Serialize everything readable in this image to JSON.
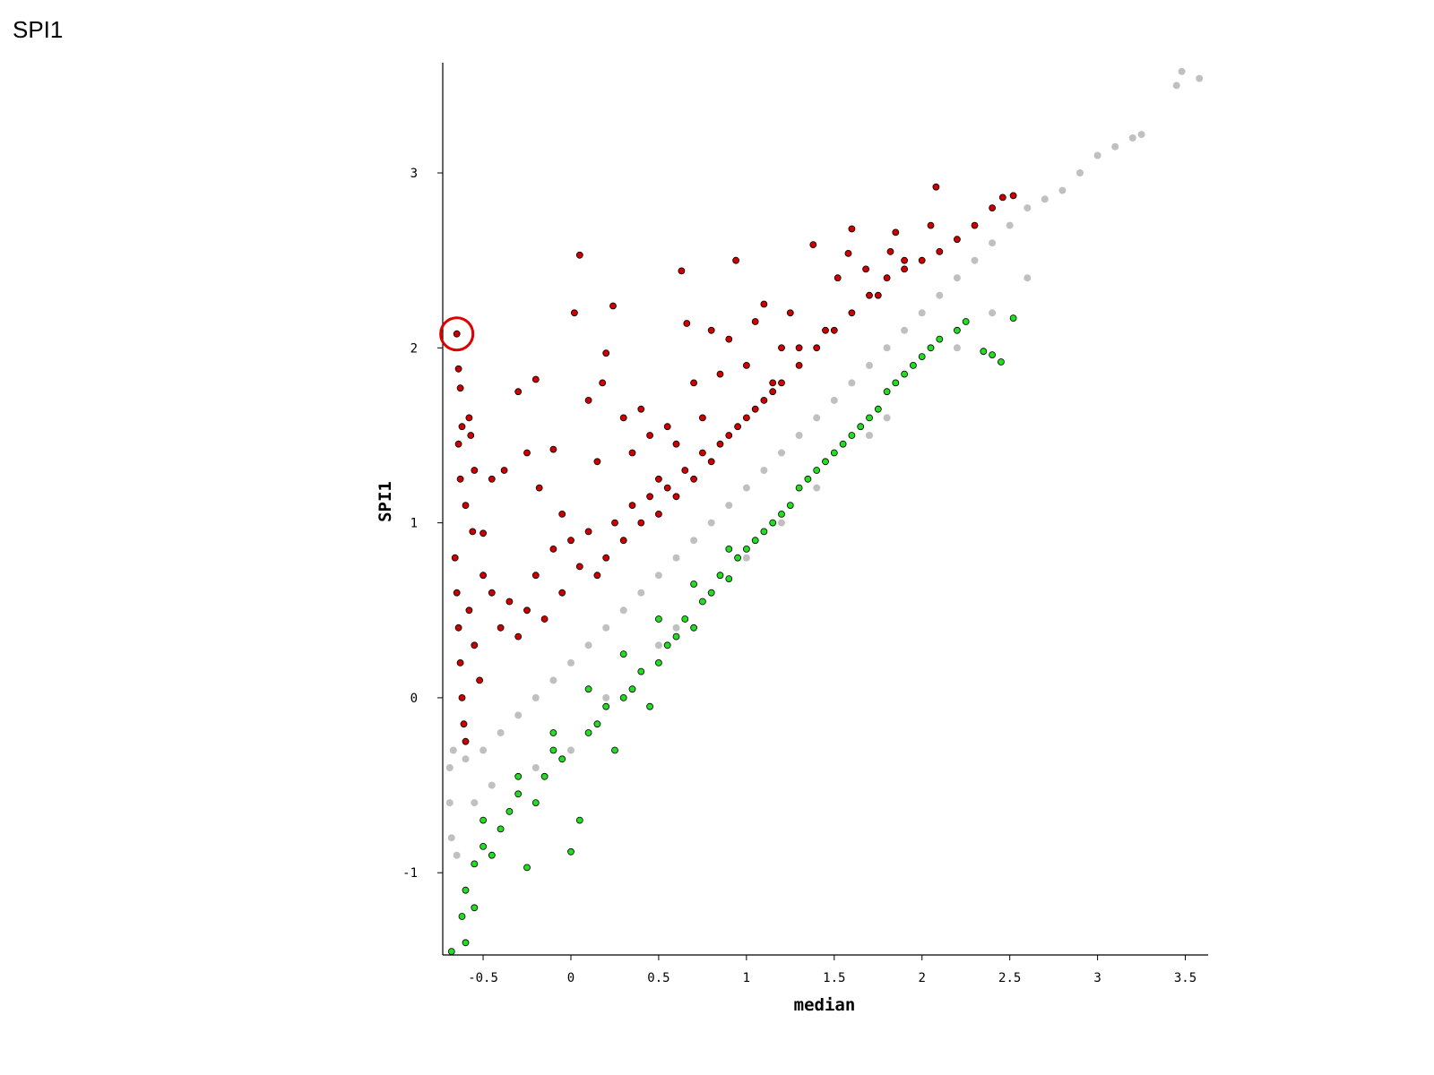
{
  "title": "SPI1",
  "colors": {
    "background": "#c0c0c0",
    "up": "#cc0000",
    "down": "#22dd22",
    "outline": "#000000",
    "highlight_ring": "#dd0000"
  },
  "chart_data": {
    "type": "scatter",
    "title": "",
    "xlabel": "median",
    "ylabel": "SPI1",
    "xlim": [
      -0.73,
      3.63
    ],
    "ylim": [
      -1.47,
      3.63
    ],
    "xticks": [
      "-0.5",
      "0",
      "0.5",
      "1",
      "1.5",
      "2",
      "2.5",
      "3",
      "3.5"
    ],
    "yticks": [
      "-1",
      "0",
      "1",
      "2",
      "3"
    ],
    "grid": false,
    "legend": "none",
    "highlight": {
      "x": -0.65,
      "y": 2.08
    },
    "series": [
      {
        "role": "background",
        "color": "#c0c0c0",
        "points": [
          [
            -0.69,
            -0.4
          ],
          [
            -0.69,
            -0.6
          ],
          [
            -0.68,
            -0.8
          ],
          [
            -0.67,
            -0.3
          ],
          [
            -0.65,
            -0.9
          ],
          [
            -0.6,
            -0.35
          ],
          [
            -0.55,
            -0.6
          ],
          [
            -0.5,
            -0.3
          ],
          [
            -0.45,
            -0.5
          ],
          [
            -0.4,
            -0.2
          ],
          [
            -0.3,
            -0.1
          ],
          [
            -0.2,
            0.0
          ],
          [
            -0.1,
            0.1
          ],
          [
            0.0,
            0.2
          ],
          [
            0.1,
            0.3
          ],
          [
            0.2,
            0.4
          ],
          [
            0.3,
            0.5
          ],
          [
            0.4,
            0.6
          ],
          [
            0.5,
            0.7
          ],
          [
            0.6,
            0.8
          ],
          [
            0.7,
            0.9
          ],
          [
            0.8,
            1.0
          ],
          [
            0.9,
            1.1
          ],
          [
            1.0,
            1.2
          ],
          [
            1.1,
            1.3
          ],
          [
            1.2,
            1.4
          ],
          [
            1.3,
            1.5
          ],
          [
            1.4,
            1.6
          ],
          [
            1.5,
            1.7
          ],
          [
            1.6,
            1.8
          ],
          [
            1.7,
            1.9
          ],
          [
            1.8,
            2.0
          ],
          [
            1.9,
            2.1
          ],
          [
            2.0,
            2.2
          ],
          [
            2.1,
            2.3
          ],
          [
            2.2,
            2.4
          ],
          [
            2.3,
            2.5
          ],
          [
            2.4,
            2.6
          ],
          [
            2.5,
            2.7
          ],
          [
            2.6,
            2.8
          ],
          [
            2.7,
            2.85
          ],
          [
            2.8,
            2.9
          ],
          [
            2.9,
            3.0
          ],
          [
            3.0,
            3.1
          ],
          [
            3.1,
            3.15
          ],
          [
            3.2,
            3.2
          ],
          [
            3.25,
            3.22
          ],
          [
            3.45,
            3.5
          ],
          [
            3.48,
            3.58
          ],
          [
            3.58,
            3.54
          ],
          [
            -0.2,
            -0.4
          ],
          [
            0.2,
            0.0
          ],
          [
            0.6,
            0.4
          ],
          [
            1.0,
            0.8
          ],
          [
            1.4,
            1.2
          ],
          [
            1.8,
            1.6
          ],
          [
            2.2,
            2.0
          ],
          [
            2.6,
            2.4
          ],
          [
            0.0,
            -0.3
          ],
          [
            0.5,
            0.3
          ],
          [
            1.2,
            1.0
          ],
          [
            1.7,
            1.5
          ],
          [
            2.4,
            2.2
          ]
        ]
      },
      {
        "role": "up",
        "color": "#cc0000",
        "points": [
          [
            -0.65,
            2.08
          ],
          [
            -0.64,
            1.88
          ],
          [
            -0.63,
            1.77
          ],
          [
            -0.62,
            1.55
          ],
          [
            -0.64,
            1.45
          ],
          [
            -0.63,
            1.25
          ],
          [
            -0.6,
            1.1
          ],
          [
            -0.58,
            1.6
          ],
          [
            -0.57,
            1.5
          ],
          [
            -0.55,
            1.3
          ],
          [
            -0.56,
            0.95
          ],
          [
            -0.5,
            0.94
          ],
          [
            -0.45,
            1.25
          ],
          [
            -0.38,
            1.3
          ],
          [
            -0.3,
            1.75
          ],
          [
            -0.25,
            1.4
          ],
          [
            -0.2,
            1.82
          ],
          [
            -0.18,
            1.2
          ],
          [
            -0.1,
            1.42
          ],
          [
            -0.05,
            1.05
          ],
          [
            0.02,
            2.2
          ],
          [
            0.05,
            2.53
          ],
          [
            0.1,
            1.7
          ],
          [
            0.15,
            1.35
          ],
          [
            0.18,
            1.8
          ],
          [
            0.2,
            1.97
          ],
          [
            0.24,
            2.24
          ],
          [
            0.3,
            1.6
          ],
          [
            0.35,
            1.4
          ],
          [
            0.4,
            1.65
          ],
          [
            0.45,
            1.5
          ],
          [
            0.5,
            1.25
          ],
          [
            0.55,
            1.55
          ],
          [
            0.6,
            1.45
          ],
          [
            0.63,
            2.44
          ],
          [
            0.66,
            2.14
          ],
          [
            0.7,
            1.8
          ],
          [
            0.75,
            1.6
          ],
          [
            0.8,
            2.1
          ],
          [
            0.85,
            1.85
          ],
          [
            0.9,
            2.05
          ],
          [
            0.94,
            2.5
          ],
          [
            1.0,
            1.9
          ],
          [
            1.05,
            2.15
          ],
          [
            1.1,
            2.25
          ],
          [
            1.15,
            1.8
          ],
          [
            1.2,
            2.0
          ],
          [
            1.25,
            2.2
          ],
          [
            1.3,
            2.0
          ],
          [
            1.38,
            2.59
          ],
          [
            1.45,
            2.1
          ],
          [
            1.52,
            2.4
          ],
          [
            1.58,
            2.54
          ],
          [
            1.6,
            2.68
          ],
          [
            1.68,
            2.45
          ],
          [
            1.75,
            2.3
          ],
          [
            1.82,
            2.55
          ],
          [
            1.85,
            2.66
          ],
          [
            1.9,
            2.5
          ],
          [
            2.05,
            2.7
          ],
          [
            2.08,
            2.92
          ],
          [
            2.2,
            2.62
          ],
          [
            2.3,
            2.7
          ],
          [
            2.4,
            2.8
          ],
          [
            2.46,
            2.86
          ],
          [
            2.52,
            2.87
          ],
          [
            -0.66,
            0.8
          ],
          [
            -0.65,
            0.6
          ],
          [
            -0.64,
            0.4
          ],
          [
            -0.63,
            0.2
          ],
          [
            -0.62,
            0.0
          ],
          [
            -0.61,
            -0.15
          ],
          [
            -0.6,
            -0.25
          ],
          [
            -0.58,
            0.5
          ],
          [
            -0.55,
            0.3
          ],
          [
            -0.52,
            0.1
          ],
          [
            -0.5,
            0.7
          ],
          [
            -0.45,
            0.6
          ],
          [
            -0.4,
            0.4
          ],
          [
            -0.35,
            0.55
          ],
          [
            -0.3,
            0.35
          ],
          [
            -0.25,
            0.5
          ],
          [
            -0.2,
            0.7
          ],
          [
            -0.15,
            0.45
          ],
          [
            -0.1,
            0.85
          ],
          [
            -0.05,
            0.6
          ],
          [
            0.0,
            0.9
          ],
          [
            0.05,
            0.75
          ],
          [
            0.1,
            0.95
          ],
          [
            0.15,
            0.7
          ],
          [
            0.2,
            0.8
          ],
          [
            0.25,
            1.0
          ],
          [
            0.3,
            0.9
          ],
          [
            0.35,
            1.1
          ],
          [
            0.4,
            1.0
          ],
          [
            0.45,
            1.15
          ],
          [
            0.5,
            1.05
          ],
          [
            0.55,
            1.2
          ],
          [
            0.6,
            1.15
          ],
          [
            0.65,
            1.3
          ],
          [
            0.7,
            1.25
          ],
          [
            0.75,
            1.4
          ],
          [
            0.8,
            1.35
          ],
          [
            0.85,
            1.45
          ],
          [
            0.9,
            1.5
          ],
          [
            0.95,
            1.55
          ],
          [
            1.0,
            1.6
          ],
          [
            1.05,
            1.65
          ],
          [
            1.1,
            1.7
          ],
          [
            1.15,
            1.75
          ],
          [
            1.2,
            1.8
          ],
          [
            1.3,
            1.9
          ],
          [
            1.4,
            2.0
          ],
          [
            1.5,
            2.1
          ],
          [
            1.6,
            2.2
          ],
          [
            1.7,
            2.3
          ],
          [
            1.8,
            2.4
          ],
          [
            1.9,
            2.45
          ],
          [
            2.0,
            2.5
          ],
          [
            2.1,
            2.55
          ]
        ]
      },
      {
        "role": "down",
        "color": "#22dd22",
        "points": [
          [
            -0.68,
            -1.45
          ],
          [
            -0.6,
            -1.4
          ],
          [
            -0.62,
            -1.25
          ],
          [
            -0.55,
            -1.2
          ],
          [
            -0.6,
            -1.1
          ],
          [
            -0.55,
            -0.95
          ],
          [
            -0.5,
            -0.85
          ],
          [
            -0.45,
            -0.9
          ],
          [
            -0.4,
            -0.75
          ],
          [
            -0.35,
            -0.65
          ],
          [
            -0.3,
            -0.55
          ],
          [
            -0.25,
            -0.97
          ],
          [
            -0.2,
            -0.6
          ],
          [
            -0.15,
            -0.45
          ],
          [
            -0.1,
            -0.3
          ],
          [
            -0.05,
            -0.35
          ],
          [
            0.0,
            -0.88
          ],
          [
            0.05,
            -0.7
          ],
          [
            0.1,
            -0.2
          ],
          [
            0.15,
            -0.15
          ],
          [
            0.2,
            -0.05
          ],
          [
            0.25,
            -0.3
          ],
          [
            0.3,
            0.0
          ],
          [
            0.35,
            0.05
          ],
          [
            0.4,
            0.15
          ],
          [
            0.45,
            -0.05
          ],
          [
            0.5,
            0.2
          ],
          [
            0.55,
            0.3
          ],
          [
            0.6,
            0.35
          ],
          [
            0.65,
            0.45
          ],
          [
            0.7,
            0.4
          ],
          [
            0.75,
            0.55
          ],
          [
            0.8,
            0.6
          ],
          [
            0.85,
            0.7
          ],
          [
            0.9,
            0.68
          ],
          [
            0.95,
            0.8
          ],
          [
            1.0,
            0.85
          ],
          [
            1.05,
            0.9
          ],
          [
            1.1,
            0.95
          ],
          [
            1.15,
            1.0
          ],
          [
            1.2,
            1.05
          ],
          [
            1.25,
            1.1
          ],
          [
            1.3,
            1.2
          ],
          [
            1.35,
            1.25
          ],
          [
            1.4,
            1.3
          ],
          [
            1.45,
            1.35
          ],
          [
            1.5,
            1.4
          ],
          [
            1.55,
            1.45
          ],
          [
            1.6,
            1.5
          ],
          [
            1.65,
            1.55
          ],
          [
            1.7,
            1.6
          ],
          [
            1.75,
            1.65
          ],
          [
            1.8,
            1.75
          ],
          [
            1.85,
            1.8
          ],
          [
            1.9,
            1.85
          ],
          [
            1.95,
            1.9
          ],
          [
            2.0,
            1.95
          ],
          [
            2.05,
            2.0
          ],
          [
            2.1,
            2.05
          ],
          [
            2.2,
            2.1
          ],
          [
            2.25,
            2.15
          ],
          [
            2.35,
            1.98
          ],
          [
            2.4,
            1.96
          ],
          [
            2.45,
            1.92
          ],
          [
            2.52,
            2.17
          ],
          [
            -0.5,
            -0.7
          ],
          [
            -0.3,
            -0.45
          ],
          [
            -0.1,
            -0.2
          ],
          [
            0.1,
            0.05
          ],
          [
            0.3,
            0.25
          ],
          [
            0.5,
            0.45
          ],
          [
            0.7,
            0.65
          ],
          [
            0.9,
            0.85
          ]
        ]
      }
    ]
  }
}
